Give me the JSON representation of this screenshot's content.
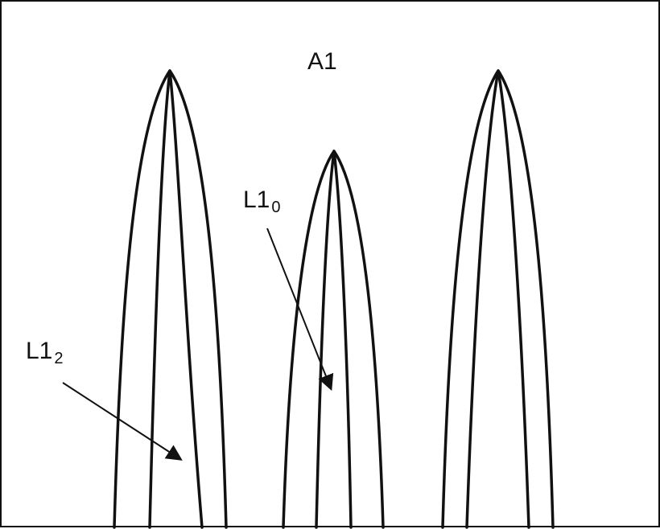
{
  "figure": {
    "title": "A1",
    "labels": [
      {
        "main": "L1",
        "sub": "0"
      },
      {
        "main": "L1",
        "sub": "2"
      }
    ],
    "colors": {
      "line": "#111111",
      "background": "#ffffff"
    }
  }
}
